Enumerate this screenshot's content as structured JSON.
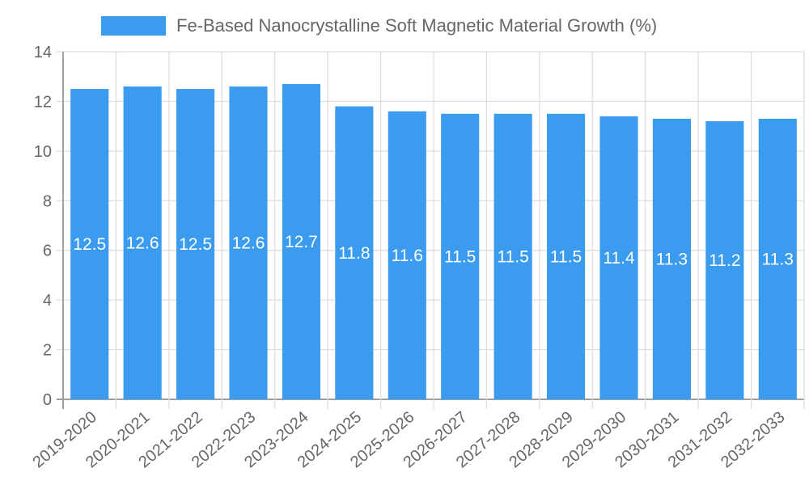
{
  "chart_data": {
    "type": "bar",
    "title": "",
    "legend": [
      "Fe-Based Nanocrystalline Soft Magnetic Material Growth (%)"
    ],
    "legend_position": "top",
    "categories": [
      "2019-2020",
      "2020-2021",
      "2021-2022",
      "2022-2023",
      "2023-2024",
      "2024-2025",
      "2025-2026",
      "2026-2027",
      "2027-2028",
      "2028-2029",
      "2029-2030",
      "2030-2031",
      "2031-2032",
      "2032-2033"
    ],
    "series": [
      {
        "name": "Fe-Based Nanocrystalline Soft Magnetic Material Growth (%)",
        "values": [
          12.5,
          12.6,
          12.5,
          12.6,
          12.7,
          11.8,
          11.6,
          11.5,
          11.5,
          11.5,
          11.4,
          11.3,
          11.2,
          11.3
        ],
        "color": "#3a9bef"
      }
    ],
    "data_labels": [
      "12.5",
      "12.6",
      "12.5",
      "12.6",
      "12.7",
      "11.8",
      "11.6",
      "11.5",
      "11.5",
      "11.5",
      "11.4",
      "11.3",
      "11.2",
      "11.3"
    ],
    "xlabel": "",
    "ylabel": "",
    "ylim": [
      0,
      14
    ],
    "yticks": [
      0,
      2,
      4,
      6,
      8,
      10,
      12,
      14
    ],
    "grid": true
  },
  "legend": {
    "label": "Fe-Based Nanocrystalline Soft Magnetic Material Growth (%)",
    "color": "#3a9bef"
  }
}
